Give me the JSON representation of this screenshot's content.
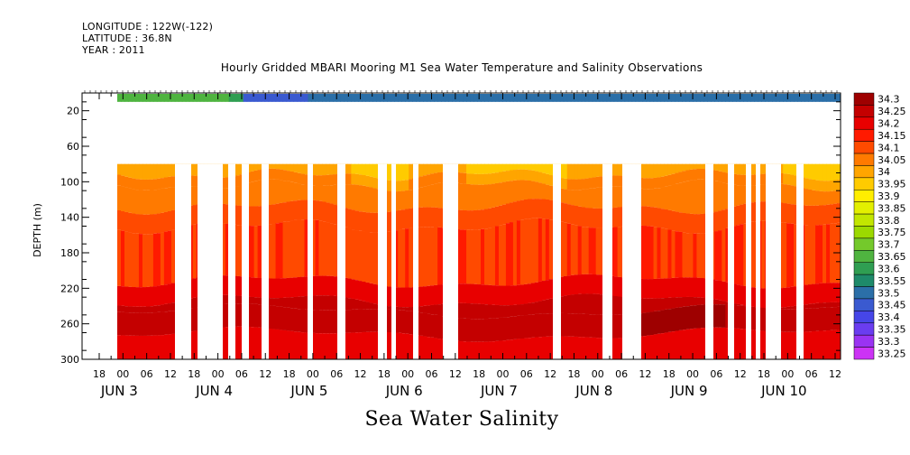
{
  "header": {
    "longitude": "LONGITUDE : 122W(-122)",
    "latitude": "LATITUDE : 36.8N",
    "year": "YEAR : 2011"
  },
  "chart_data": {
    "type": "heatmap",
    "title": "Hourly Gridded MBARI Mooring M1 Sea Water Temperature and Salinity Observations",
    "bottom_title": "Sea Water Salinity",
    "ylabel": "DEPTH (m)",
    "ylim": [
      300,
      0
    ],
    "y_inverted": true,
    "y_ticks": [
      20,
      60,
      100,
      140,
      180,
      220,
      260,
      300
    ],
    "x_hour_ticks": [
      "18",
      "00",
      "06",
      "12",
      "18",
      "00",
      "06",
      "12",
      "18",
      "00",
      "06",
      "12",
      "18",
      "00",
      "06",
      "12",
      "18",
      "00",
      "06",
      "12",
      "18",
      "00",
      "06",
      "12",
      "18",
      "00",
      "06",
      "12",
      "18",
      "00",
      "06",
      "12"
    ],
    "x_date_labels": [
      "JUN  3",
      "JUN  4",
      "JUN  5",
      "JUN  6",
      "JUN  7",
      "JUN  8",
      "JUN  9",
      "JUN 10"
    ],
    "colorbar_levels": [
      "34.3",
      "34.25",
      "34.2",
      "34.15",
      "34.1",
      "34.05",
      "34",
      "33.95",
      "33.9",
      "33.85",
      "33.8",
      "33.75",
      "33.7",
      "33.65",
      "33.6",
      "33.55",
      "33.5",
      "33.45",
      "33.4",
      "33.35",
      "33.3",
      "33.25"
    ],
    "colorbar_colors": [
      "#9e0000",
      "#c40000",
      "#e80000",
      "#ff1a00",
      "#ff4a00",
      "#ff7a00",
      "#ffa500",
      "#ffcb00",
      "#ffee00",
      "#e3ef00",
      "#c2e600",
      "#9cd900",
      "#74c92b",
      "#4fb440",
      "#2f9e52",
      "#1e8a6a",
      "#2b6fa8",
      "#3a5ad0",
      "#4646e8",
      "#6a3df0",
      "#9a33f2",
      "#cc33f5"
    ],
    "depth_rows": [
      {
        "range": [
          5,
          10
        ],
        "values": {
          "surface": "33.40-33.65"
        }
      },
      {
        "range": [
          80,
          100
        ],
        "values": {
          "typical": "33.95-34.05"
        }
      },
      {
        "range": [
          100,
          140
        ],
        "values": {
          "typical": "34.05-34.10"
        }
      },
      {
        "range": [
          140,
          210
        ],
        "values": {
          "typical": "34.10-34.15"
        }
      },
      {
        "range": [
          210,
          235
        ],
        "values": {
          "typical": "34.15-34.20"
        }
      },
      {
        "range": [
          235,
          275
        ],
        "values": {
          "typical": "34.20-34.30"
        }
      },
      {
        "range": [
          275,
          300
        ],
        "values": {
          "typical": "34.15-34.20"
        }
      }
    ]
  }
}
